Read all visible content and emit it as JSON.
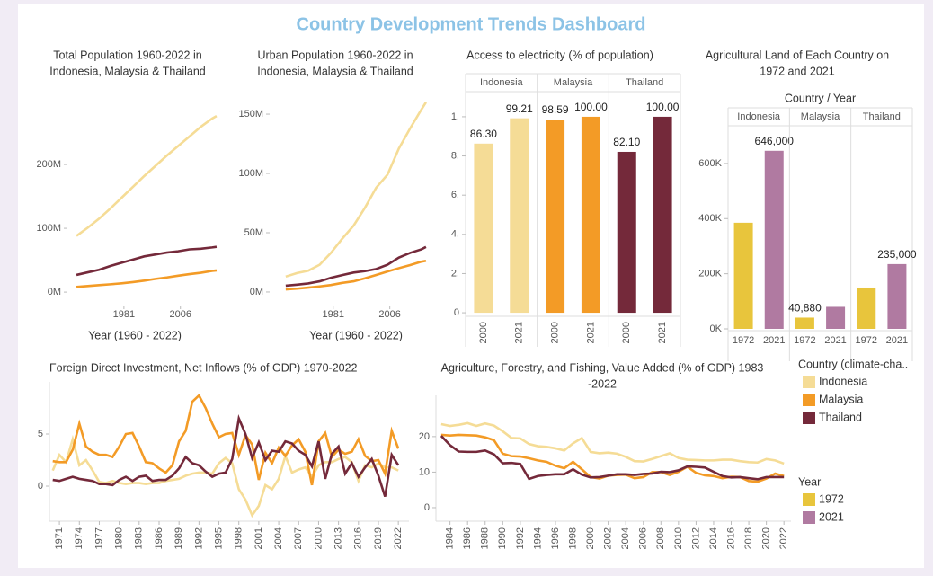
{
  "title": "Country Development Trends Dashboard",
  "chart_data": [
    {
      "type": "line",
      "title": [
        "Total Population 1960-2022 in",
        "Indonesia, Malaysia & Thailand"
      ],
      "x_label": "Year (1960 - 2022)",
      "x": [
        1960,
        1965,
        1970,
        1975,
        1980,
        1985,
        1990,
        1995,
        2000,
        2005,
        2010,
        2015,
        2020,
        2022
      ],
      "xlim": [
        1956,
        2025.6
      ],
      "xticks": [
        1981,
        2006
      ],
      "ylim": [
        -21000000,
        317000000
      ],
      "yticks": [
        {
          "value": 0,
          "label": "0M"
        },
        {
          "value": 100000000,
          "label": "100M"
        },
        {
          "value": 200000000,
          "label": "200M"
        }
      ],
      "series": [
        {
          "name": "Indonesia",
          "color": "#f5dc96",
          "values": [
            88000000,
            101000000,
            115000000,
            131000000,
            148000000,
            165000000,
            182000000,
            198000000,
            214000000,
            229000000,
            244000000,
            259000000,
            272000000,
            276000000
          ]
        },
        {
          "name": "Malaysia",
          "color": "#f39b26",
          "values": [
            8200000,
            9600000,
            10900000,
            12300000,
            13800000,
            15700000,
            18000000,
            20700000,
            23000000,
            25700000,
            28200000,
            30300000,
            33200000,
            34000000
          ]
        },
        {
          "name": "Thailand",
          "color": "#74293a",
          "values": [
            27000000,
            31000000,
            35000000,
            41000000,
            46000000,
            51000000,
            56000000,
            59000000,
            62000000,
            64000000,
            67000000,
            68000000,
            70000000,
            71000000
          ]
        }
      ]
    },
    {
      "type": "line",
      "title": [
        "Urban Population 1960-2022 in",
        "Indonesia, Malaysia & Thailand"
      ],
      "x_label": "Year (1960 - 2022)",
      "x": [
        1960,
        1965,
        1970,
        1975,
        1980,
        1985,
        1990,
        1995,
        2000,
        2005,
        2010,
        2015,
        2020,
        2022
      ],
      "xlim": [
        1952.9,
        2026.4
      ],
      "xticks": [
        1981,
        2006
      ],
      "ylim": [
        -11400000,
        170500000
      ],
      "yticks": [
        {
          "value": 0,
          "label": "0M"
        },
        {
          "value": 50000000,
          "label": "50M"
        },
        {
          "value": 100000000,
          "label": "100M"
        },
        {
          "value": 150000000,
          "label": "150M"
        }
      ],
      "series": [
        {
          "name": "Indonesia",
          "color": "#f5dc96",
          "values": [
            13000000,
            16000000,
            18000000,
            23000000,
            33000000,
            45000000,
            56000000,
            71000000,
            88000000,
            99000000,
            121000000,
            138000000,
            154000000,
            160000000
          ]
        },
        {
          "name": "Malaysia",
          "color": "#f39b26",
          "values": [
            2200000,
            2800000,
            3700000,
            4700000,
            5900000,
            7700000,
            9000000,
            11500000,
            14400000,
            17300000,
            20100000,
            22700000,
            25600000,
            26300000
          ]
        },
        {
          "name": "Thailand",
          "color": "#74293a",
          "values": [
            5300000,
            6200000,
            7200000,
            9000000,
            12000000,
            14300000,
            16400000,
            17600000,
            19400000,
            23000000,
            29000000,
            33000000,
            36000000,
            38000000
          ]
        }
      ]
    },
    {
      "type": "grouped_bar",
      "title": [
        "Access to electricity (% of population)"
      ],
      "categories": [
        "Indonesia",
        "Malaysia",
        "Thailand"
      ],
      "category_colors": [
        "#f5dc96",
        "#f39b26",
        "#74293a"
      ],
      "ylim": [
        -1.8,
        112.8
      ],
      "yticks": [
        0,
        {
          "value": 20,
          "label": "2."
        },
        {
          "value": 40,
          "label": "4."
        },
        {
          "value": 60,
          "label": "6."
        },
        {
          "value": 80,
          "label": "8."
        },
        {
          "value": 100,
          "label": "1."
        }
      ],
      "series": [
        {
          "name": "2000",
          "values": [
            86.3,
            98.59,
            82.1
          ],
          "value_labels": [
            "86.30",
            "98.59",
            "82.10"
          ]
        },
        {
          "name": "2021",
          "values": [
            99.21,
            100,
            100
          ],
          "value_labels": [
            "99.21",
            "100.00",
            "100.00"
          ]
        }
      ]
    },
    {
      "type": "grouped_bar",
      "title": [
        "Agricultural Land of Each Country on",
        "1972 and 2021"
      ],
      "header": "Country / Year",
      "categories": [
        "Indonesia",
        "Malaysia",
        "Thailand"
      ],
      "ylim": [
        -6500,
        736600
      ],
      "yticks": [
        {
          "value": 0,
          "label": "0K"
        },
        {
          "value": 200000,
          "label": "200K"
        },
        {
          "value": 400000,
          "label": "400K"
        },
        {
          "value": 600000,
          "label": "600K"
        }
      ],
      "series": [
        {
          "name": "1972",
          "color": "#e8c53c",
          "values": [
            385000,
            40880,
            150000
          ],
          "value_labels": [
            null,
            "40,880",
            null
          ]
        },
        {
          "name": "2021",
          "color": "#b07aa1",
          "values": [
            646000,
            80000,
            235000
          ],
          "value_labels": [
            "646,000",
            null,
            "235,000"
          ]
        }
      ]
    },
    {
      "type": "line",
      "title": [
        "Foreign Direct Investment, Net Inflows (% of GDP) 1970-2022"
      ],
      "x": [
        1970,
        1971,
        1972,
        1973,
        1974,
        1975,
        1976,
        1977,
        1978,
        1979,
        1980,
        1981,
        1982,
        1983,
        1984,
        1985,
        1986,
        1987,
        1988,
        1989,
        1990,
        1991,
        1992,
        1993,
        1994,
        1995,
        1996,
        1997,
        1998,
        1999,
        2000,
        2001,
        2002,
        2003,
        2004,
        2005,
        2006,
        2007,
        2008,
        2009,
        2010,
        2011,
        2012,
        2013,
        2014,
        2015,
        2016,
        2017,
        2018,
        2019,
        2020,
        2021,
        2022
      ],
      "xlim": [
        1969.5,
        2023.6
      ],
      "xticks": [
        1971,
        1974,
        1977,
        1980,
        1983,
        1986,
        1989,
        1992,
        1995,
        1998,
        2001,
        2004,
        2007,
        2010,
        2013,
        2016,
        2019,
        2022
      ],
      "ylim": [
        -3.36,
        10
      ],
      "yticks": [
        0,
        5
      ],
      "series": [
        {
          "name": "Indonesia",
          "color": "#f5dc96",
          "values": [
            1.5,
            3.0,
            2.3,
            4.5,
            2.0,
            2.5,
            1.5,
            0.4,
            0.3,
            0.5,
            0.3,
            0.2,
            0.3,
            0.3,
            0.2,
            0.3,
            0.3,
            0.5,
            0.6,
            0.7,
            1.0,
            1.2,
            1.3,
            1.3,
            1.2,
            2.2,
            2.7,
            2.2,
            -0.3,
            -1.3,
            -2.8,
            -1.9,
            0.1,
            -0.3,
            0.7,
            2.9,
            1.3,
            1.6,
            1.8,
            0.9,
            2.0,
            2.3,
            2.3,
            2.6,
            2.8,
            2.3,
            0.5,
            2.0,
            1.8,
            2.2,
            1.8,
            1.8,
            1.5
          ]
        },
        {
          "name": "Malaysia",
          "color": "#f39b26",
          "values": [
            2.4,
            2.3,
            2.3,
            3.5,
            6.0,
            3.8,
            3.3,
            3.0,
            3.0,
            2.8,
            3.8,
            5.0,
            5.1,
            3.8,
            2.3,
            2.2,
            1.7,
            1.3,
            2.0,
            4.3,
            5.3,
            8.1,
            8.7,
            7.5,
            6.0,
            4.7,
            5.0,
            5.1,
            3.0,
            4.9,
            4.0,
            0.6,
            3.2,
            2.2,
            3.7,
            2.9,
            3.9,
            4.5,
            3.3,
            0.1,
            4.3,
            5.1,
            2.8,
            3.5,
            3.1,
            3.3,
            4.5,
            2.9,
            2.4,
            2.5,
            1.2,
            5.3,
            3.6
          ]
        },
        {
          "name": "Thailand",
          "color": "#74293a",
          "values": [
            0.6,
            0.5,
            0.7,
            0.9,
            0.7,
            0.6,
            0.5,
            0.2,
            0.2,
            0.1,
            0.6,
            0.9,
            0.5,
            0.9,
            1.0,
            0.5,
            0.6,
            0.6,
            1.0,
            1.7,
            2.8,
            2.2,
            2.0,
            1.4,
            0.9,
            1.2,
            1.3,
            2.6,
            6.5,
            5.0,
            2.7,
            4.2,
            2.5,
            3.4,
            3.3,
            4.3,
            4.1,
            3.4,
            3.0,
            1.9,
            4.3,
            0.7,
            3.1,
            3.8,
            1.2,
            2.2,
            0.9,
            1.8,
            2.6,
            1.0,
            -1.0,
            3.0,
            2.0
          ]
        }
      ]
    },
    {
      "type": "line",
      "title": [
        "Agriculture, Forestry, and Fishing, Value Added (% of GDP) 1983",
        "-2022"
      ],
      "x": [
        1983,
        1984,
        1985,
        1986,
        1987,
        1988,
        1989,
        1990,
        1991,
        1992,
        1993,
        1994,
        1995,
        1996,
        1997,
        1998,
        1999,
        2000,
        2001,
        2002,
        2003,
        2004,
        2005,
        2006,
        2007,
        2008,
        2009,
        2010,
        2011,
        2012,
        2013,
        2014,
        2015,
        2016,
        2017,
        2018,
        2019,
        2020,
        2021,
        2022
      ],
      "xlim": [
        1982.4,
        2022.8
      ],
      "xticks": [
        1984,
        1986,
        1988,
        1990,
        1992,
        1994,
        1996,
        1998,
        2000,
        2002,
        2004,
        2006,
        2008,
        2010,
        2012,
        2014,
        2016,
        2018,
        2020,
        2022
      ],
      "ylim": [
        -3.8,
        31.6
      ],
      "yticks": [
        0,
        10,
        20
      ],
      "series": [
        {
          "name": "Indonesia",
          "color": "#f5dc96",
          "values": [
            23.5,
            23.0,
            23.3,
            23.8,
            23.0,
            23.7,
            23.1,
            21.5,
            19.6,
            19.5,
            17.9,
            17.3,
            17.1,
            16.7,
            16.1,
            18.1,
            19.6,
            15.7,
            15.3,
            15.5,
            15.2,
            14.3,
            13.1,
            13.0,
            13.7,
            14.5,
            15.3,
            14.0,
            13.5,
            13.4,
            13.3,
            13.3,
            13.5,
            13.5,
            13.1,
            12.8,
            12.7,
            13.7,
            13.3,
            12.4
          ]
        },
        {
          "name": "Malaysia",
          "color": "#f39b26",
          "values": [
            20.5,
            20.3,
            20.5,
            20.4,
            20.3,
            19.8,
            19.0,
            15.2,
            14.5,
            14.4,
            13.9,
            13.3,
            12.9,
            11.8,
            11.1,
            12.9,
            10.8,
            8.6,
            8.2,
            9.0,
            9.2,
            9.3,
            8.3,
            8.6,
            10.0,
            10.0,
            9.2,
            10.1,
            11.5,
            9.8,
            9.1,
            8.9,
            8.3,
            8.7,
            8.6,
            7.5,
            7.3,
            8.2,
            9.6,
            8.9
          ]
        },
        {
          "name": "Thailand",
          "color": "#74293a",
          "values": [
            20.2,
            17.6,
            15.8,
            15.7,
            15.7,
            16.1,
            15.0,
            12.5,
            12.6,
            12.3,
            8.1,
            8.9,
            9.2,
            9.4,
            9.4,
            10.8,
            9.3,
            8.5,
            8.6,
            9.0,
            9.4,
            9.4,
            9.2,
            9.5,
            9.6,
            10.1,
            10.0,
            10.5,
            11.6,
            11.5,
            11.3,
            10.1,
            8.9,
            8.5,
            8.6,
            8.3,
            8.0,
            8.6,
            8.6,
            8.6
          ]
        }
      ]
    }
  ],
  "legends": [
    {
      "title": "Country (climate-cha..",
      "items": [
        {
          "label": "Indonesia",
          "color": "#f5dc96"
        },
        {
          "label": "Malaysia",
          "color": "#f39b26"
        },
        {
          "label": "Thailand",
          "color": "#74293a"
        }
      ]
    },
    {
      "title": "Year",
      "items": [
        {
          "label": "1972",
          "color": "#e8c53c"
        },
        {
          "label": "2021",
          "color": "#b07aa1"
        }
      ]
    }
  ]
}
